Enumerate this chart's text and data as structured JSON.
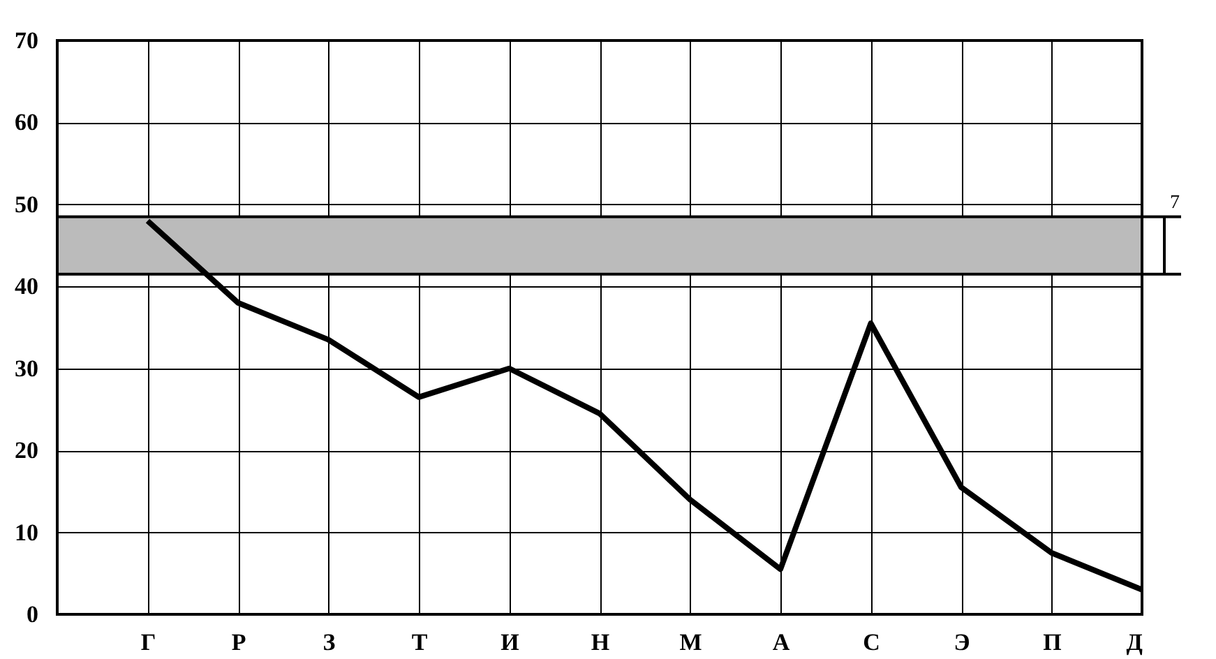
{
  "chart_data": {
    "type": "line",
    "categories": [
      "Г",
      "Р",
      "З",
      "Т",
      "И",
      "Н",
      "М",
      "А",
      "С",
      "Э",
      "П",
      "Д"
    ],
    "series": [
      {
        "color": "#000000",
        "values": [
          48,
          38,
          33.5,
          26.5,
          30,
          24.5,
          14,
          5.5,
          35.5,
          15.5,
          7.5,
          3
        ]
      }
    ],
    "ylim": [
      0,
      70
    ],
    "yticks": [
      0,
      10,
      20,
      30,
      40,
      50,
      60,
      70
    ],
    "bands": [
      {
        "axis": "y",
        "from": 41.5,
        "to": 48.5,
        "label": "7",
        "color": "#bbbbbb"
      }
    ],
    "grid": true,
    "line_style": "solid"
  }
}
